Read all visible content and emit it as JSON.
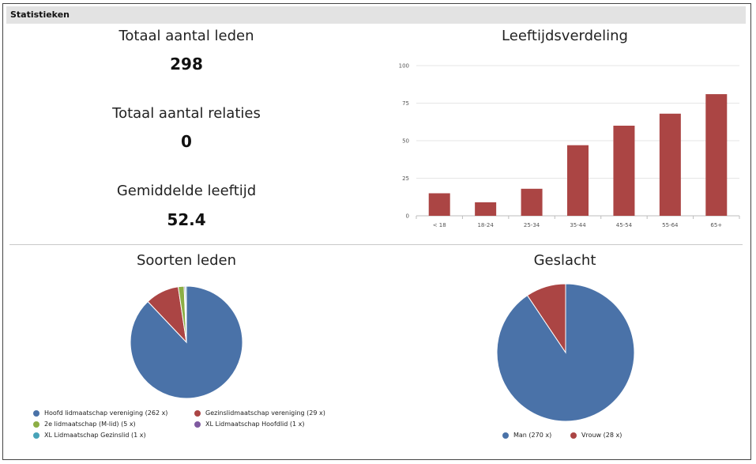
{
  "header": {
    "title": "Statistieken"
  },
  "stats": [
    {
      "label": "Totaal aantal leden",
      "value": "298"
    },
    {
      "label": "Totaal aantal relaties",
      "value": "0"
    },
    {
      "label": "Gemiddelde leeftijd",
      "value": "52.4"
    }
  ],
  "colors": {
    "bar": "#ab4544",
    "pie": [
      "#4a72a8",
      "#ab4544",
      "#8cae45",
      "#7f5aa0",
      "#48a3b8"
    ],
    "grid": "#e6e6e6"
  },
  "chart_data": [
    {
      "type": "bar",
      "title": "Leeftijdsverdeling",
      "categories": [
        "< 18",
        "18-24",
        "25-34",
        "35-44",
        "45-54",
        "55-64",
        "65+"
      ],
      "values": [
        15,
        9,
        18,
        47,
        60,
        68,
        81
      ],
      "yticks": [
        0,
        25,
        50,
        75,
        100
      ],
      "ylim": [
        0,
        100
      ],
      "xlabel": "",
      "ylabel": ""
    },
    {
      "type": "pie",
      "title": "Soorten leden",
      "labels": [
        "Hoofd lidmaatschap vereniging (262 x)",
        "Gezinslidmaatschap vereniging (29 x)",
        "2e lidmaatschap (M-lid) (5 x)",
        "XL Lidmaatschap Hoofdlid (1 x)",
        "XL Lidmaatschap Gezinslid (1 x)"
      ],
      "values": [
        262,
        29,
        5,
        1,
        1
      ]
    },
    {
      "type": "pie",
      "title": "Geslacht",
      "labels": [
        "Man (270 x)",
        "Vrouw (28 x)"
      ],
      "values": [
        270,
        28
      ]
    }
  ]
}
